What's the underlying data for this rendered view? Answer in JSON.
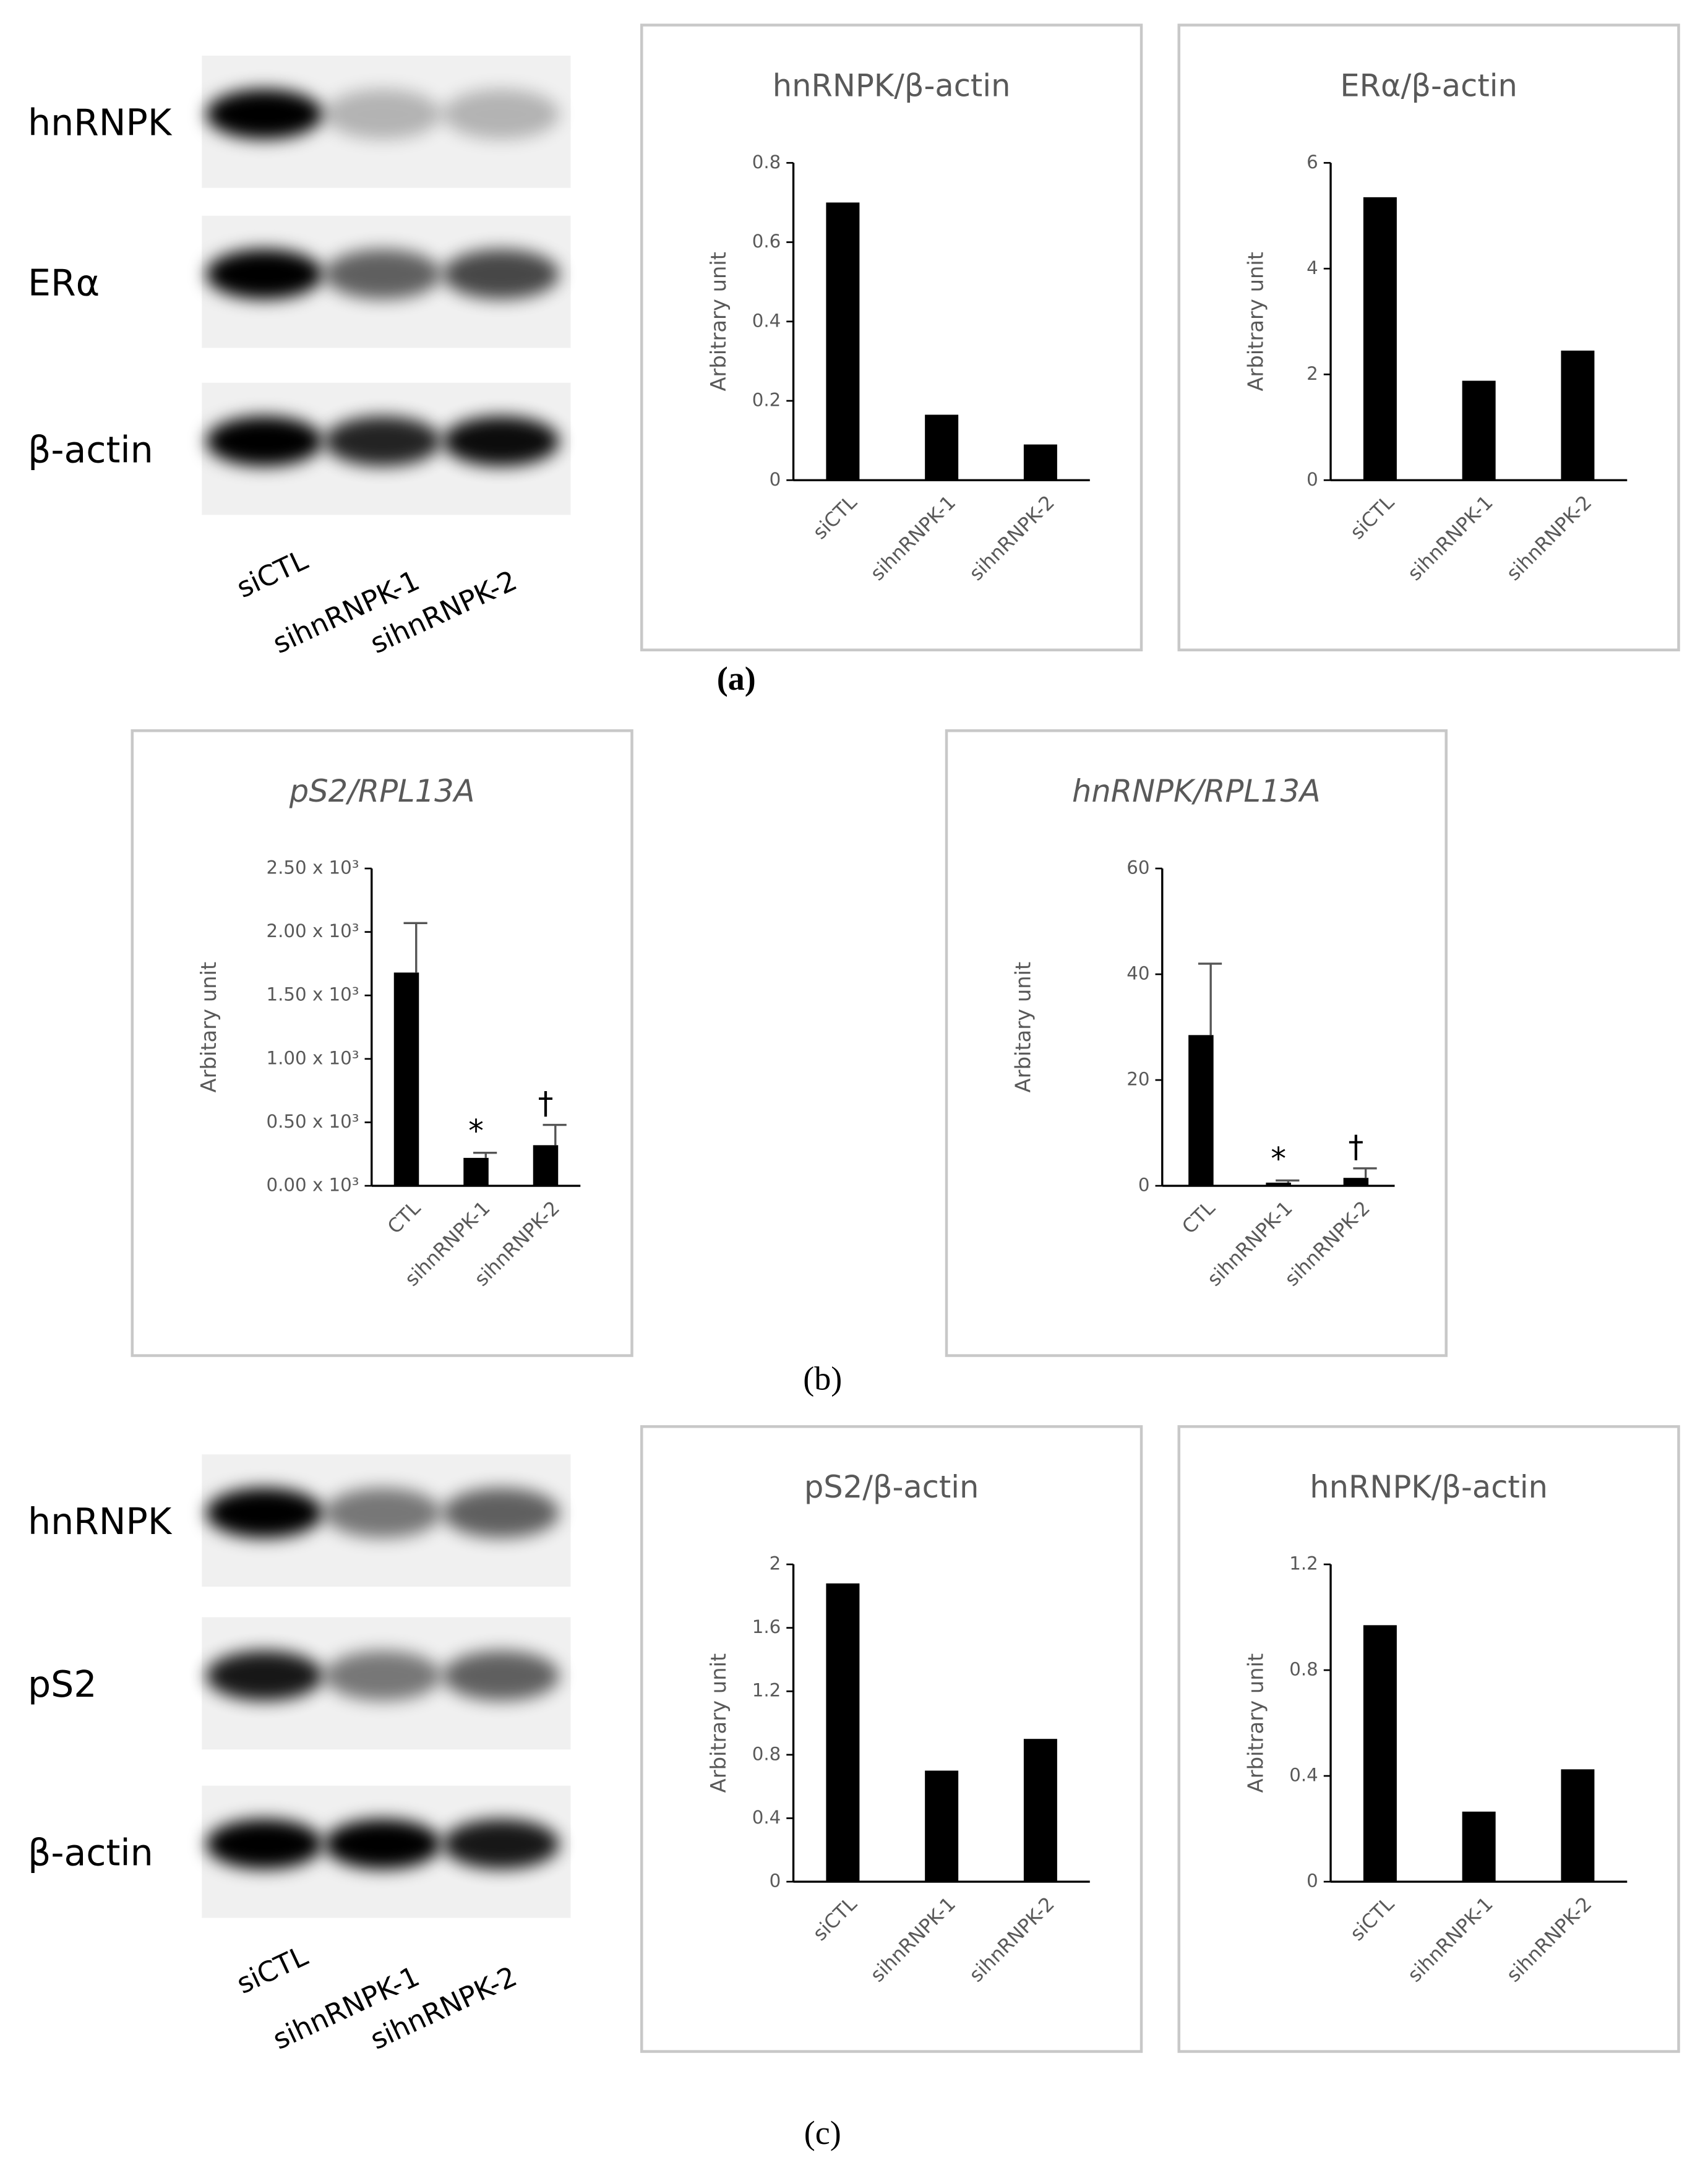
{
  "chart_data": [
    {
      "type": "bar",
      "title": "hnRNPK/β-actin",
      "y_label": "Arbitrary unit",
      "categories": [
        "siCTL",
        "sihnRNPK-1",
        "sihnRNPK-2"
      ],
      "values": [
        0.7,
        0.165,
        0.09
      ],
      "color": "#000000",
      "ylim": [
        0,
        0.8
      ],
      "yticks": [
        0,
        0.2,
        0.4,
        0.6,
        0.8
      ]
    },
    {
      "type": "bar",
      "title": "ERα/β-actin",
      "y_label": "Arbitrary unit",
      "categories": [
        "siCTL",
        "sihnRNPK-1",
        "sihnRNPK-2"
      ],
      "values": [
        5.35,
        1.88,
        2.45
      ],
      "color": "#000000",
      "ylim": [
        0,
        6
      ],
      "yticks": [
        0,
        2,
        4,
        6
      ]
    },
    {
      "type": "bar",
      "title": "pS2/RPL13A",
      "italic": true,
      "y_label": "Arbitary unit",
      "categories": [
        "CTL",
        "sihnRNPK-1",
        "sihnRNPK-2"
      ],
      "values": [
        1680,
        220,
        320
      ],
      "errors": [
        390,
        40,
        160
      ],
      "markers": [
        null,
        "*",
        "†"
      ],
      "color": "#000000",
      "ylim": [
        0,
        2500
      ],
      "yticks": [
        {
          "value": 0,
          "label": "0.00 x 10³"
        },
        {
          "value": 500,
          "label": "0.50 x 10³"
        },
        {
          "value": 1000,
          "label": "1.00 x 10³"
        },
        {
          "value": 1500,
          "label": "1.50 x 10³"
        },
        {
          "value": 2000,
          "label": "2.00 x 10³"
        },
        {
          "value": 2500,
          "label": "2.50 x 10³"
        }
      ]
    },
    {
      "type": "bar",
      "title": "hnRNPK/RPL13A",
      "italic": true,
      "y_label": "Arbitary unit",
      "categories": [
        "CTL",
        "sihnRNPK-1",
        "sihnRNPK-2"
      ],
      "values": [
        28.5,
        0.6,
        1.5
      ],
      "errors": [
        13.5,
        0.4,
        1.8
      ],
      "markers": [
        null,
        "*",
        "†"
      ],
      "color": "#000000",
      "ylim": [
        0,
        60
      ],
      "yticks": [
        0,
        20,
        40,
        60
      ]
    },
    {
      "type": "bar",
      "title": "pS2/β-actin",
      "y_label": "Arbitrary unit",
      "categories": [
        "siCTL",
        "sihnRNPK-1",
        "sihnRNPK-2"
      ],
      "values": [
        1.88,
        0.7,
        0.9
      ],
      "color": "#000000",
      "ylim": [
        0,
        2
      ],
      "yticks": [
        0,
        0.4,
        0.8,
        1.2,
        1.6,
        2
      ]
    },
    {
      "type": "bar",
      "title": "hnRNPK/β-actin",
      "y_label": "Arbitrary unit",
      "categories": [
        "siCTL",
        "sihnRNPK-1",
        "sihnRNPK-2"
      ],
      "values": [
        0.97,
        0.265,
        0.425
      ],
      "color": "#000000",
      "ylim": [
        0,
        1.2
      ],
      "yticks": [
        0,
        0.4,
        0.8,
        1.2
      ]
    }
  ],
  "blots": [
    {
      "rows": [
        "hnRNPK",
        "ERα",
        "β-actin"
      ],
      "lanes": [
        "siCTL",
        "sihnRNPK-1",
        "sihnRNPK-2"
      ]
    },
    {
      "rows": [
        "hnRNPK",
        "pS2",
        "β-actin"
      ],
      "lanes": [
        "siCTL",
        "sihnRNPK-1",
        "sihnRNPK-2"
      ]
    }
  ],
  "panel_labels": [
    "(a)",
    "(b)",
    "(c)"
  ]
}
